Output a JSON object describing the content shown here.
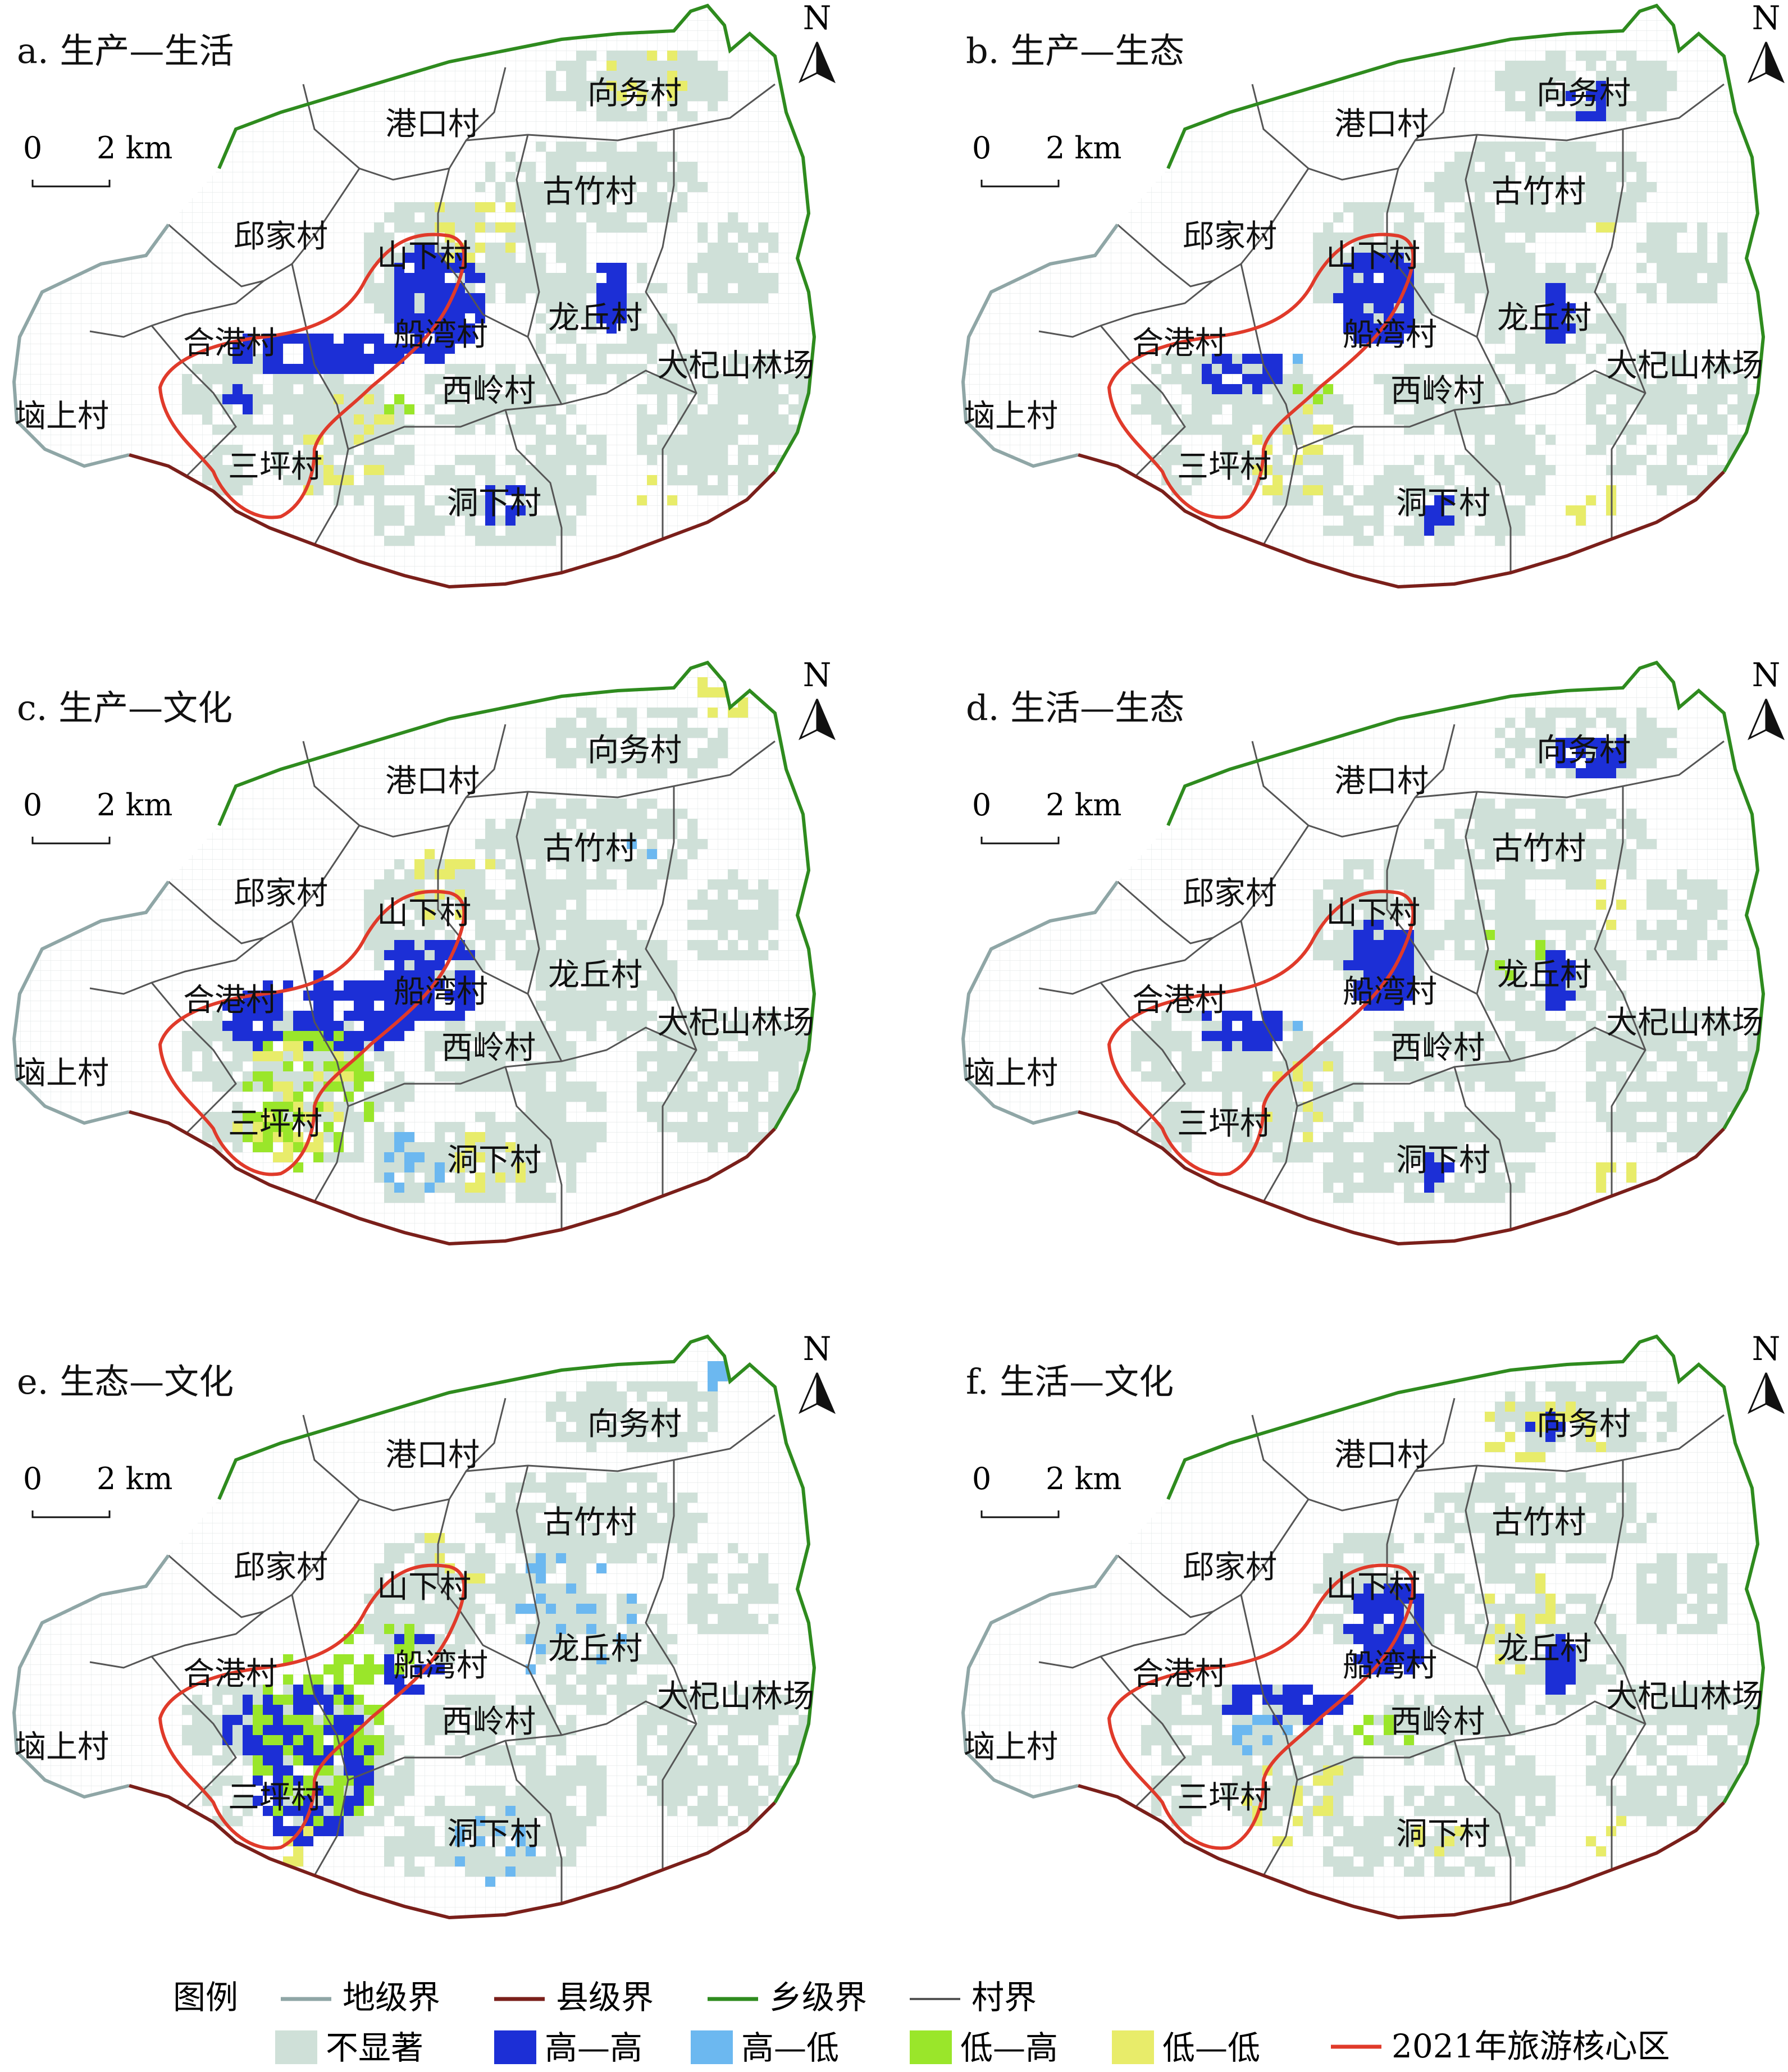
{
  "panels": [
    {
      "title": "a. 生产—生活"
    },
    {
      "title": "b. 生产—生态"
    },
    {
      "title": "c. 生产—文化"
    },
    {
      "title": "d. 生活—生态"
    },
    {
      "title": "e. 生态—文化"
    },
    {
      "title": "f. 生活—文化"
    }
  ],
  "scale_bar": {
    "zero": "0",
    "value": "2 km"
  },
  "north_arrow": {
    "label": "N"
  },
  "village_labels": [
    "向务村",
    "港口村",
    "古竹村",
    "邱家村",
    "山下村",
    "龙丘村",
    "合港村",
    "船湾村",
    "大杞山林场",
    "西岭村",
    "垴上村",
    "三坪村",
    "洞下村"
  ],
  "legend": {
    "title": "图例",
    "lines": [
      {
        "label": "地级界",
        "color": "#8fa6a6"
      },
      {
        "label": "县级界",
        "color": "#7a1f1a"
      },
      {
        "label": "乡级界",
        "color": "#2e8b1e"
      },
      {
        "label": "村界",
        "color": "#555555"
      }
    ],
    "patches": [
      {
        "label": "不显著",
        "color": "#cfe0d8"
      },
      {
        "label": "高—高",
        "color": "#1c2fd6"
      },
      {
        "label": "高—低",
        "color": "#6cb8f0"
      },
      {
        "label": "低—高",
        "color": "#9ae62a"
      },
      {
        "label": "低—低",
        "color": "#e8ec6a"
      }
    ],
    "core_zone": {
      "label": "2021年旅游核心区",
      "color": "#e03a2a"
    }
  }
}
